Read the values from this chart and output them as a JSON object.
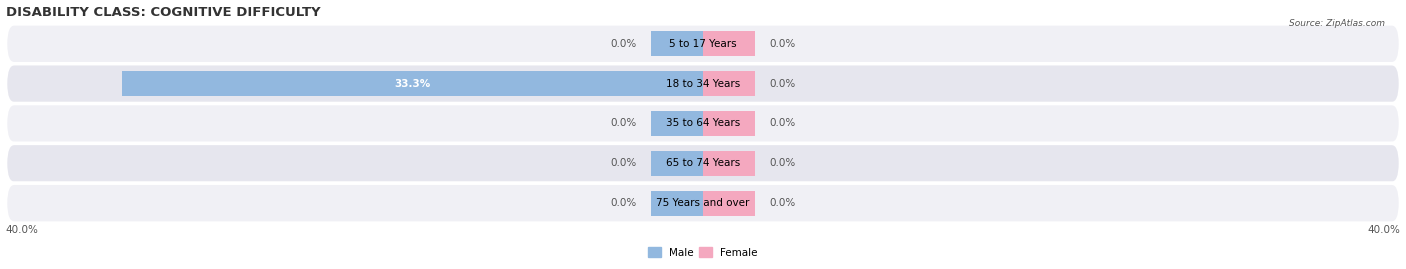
{
  "title": "DISABILITY CLASS: COGNITIVE DIFFICULTY",
  "source_text": "Source: ZipAtlas.com",
  "categories": [
    "5 to 17 Years",
    "18 to 34 Years",
    "35 to 64 Years",
    "65 to 74 Years",
    "75 Years and over"
  ],
  "male_values": [
    0.0,
    33.3,
    0.0,
    0.0,
    0.0
  ],
  "female_values": [
    0.0,
    0.0,
    0.0,
    0.0,
    0.0
  ],
  "max_val": 40.0,
  "male_color": "#92b8df",
  "female_color": "#f4a8bf",
  "bar_height": 0.62,
  "stub_size": 3.0,
  "title_fontsize": 9.5,
  "label_fontsize": 7.5,
  "category_fontsize": 7.5,
  "legend_male": "Male",
  "legend_female": "Female",
  "x_axis_label_left": "40.0%",
  "x_axis_label_right": "40.0%",
  "text_color": "#555555",
  "white": "#ffffff",
  "row_colors": [
    "#f0f0f5",
    "#e6e6ee"
  ],
  "row_edge_color": "#ffffff",
  "bg_color": "#ffffff"
}
